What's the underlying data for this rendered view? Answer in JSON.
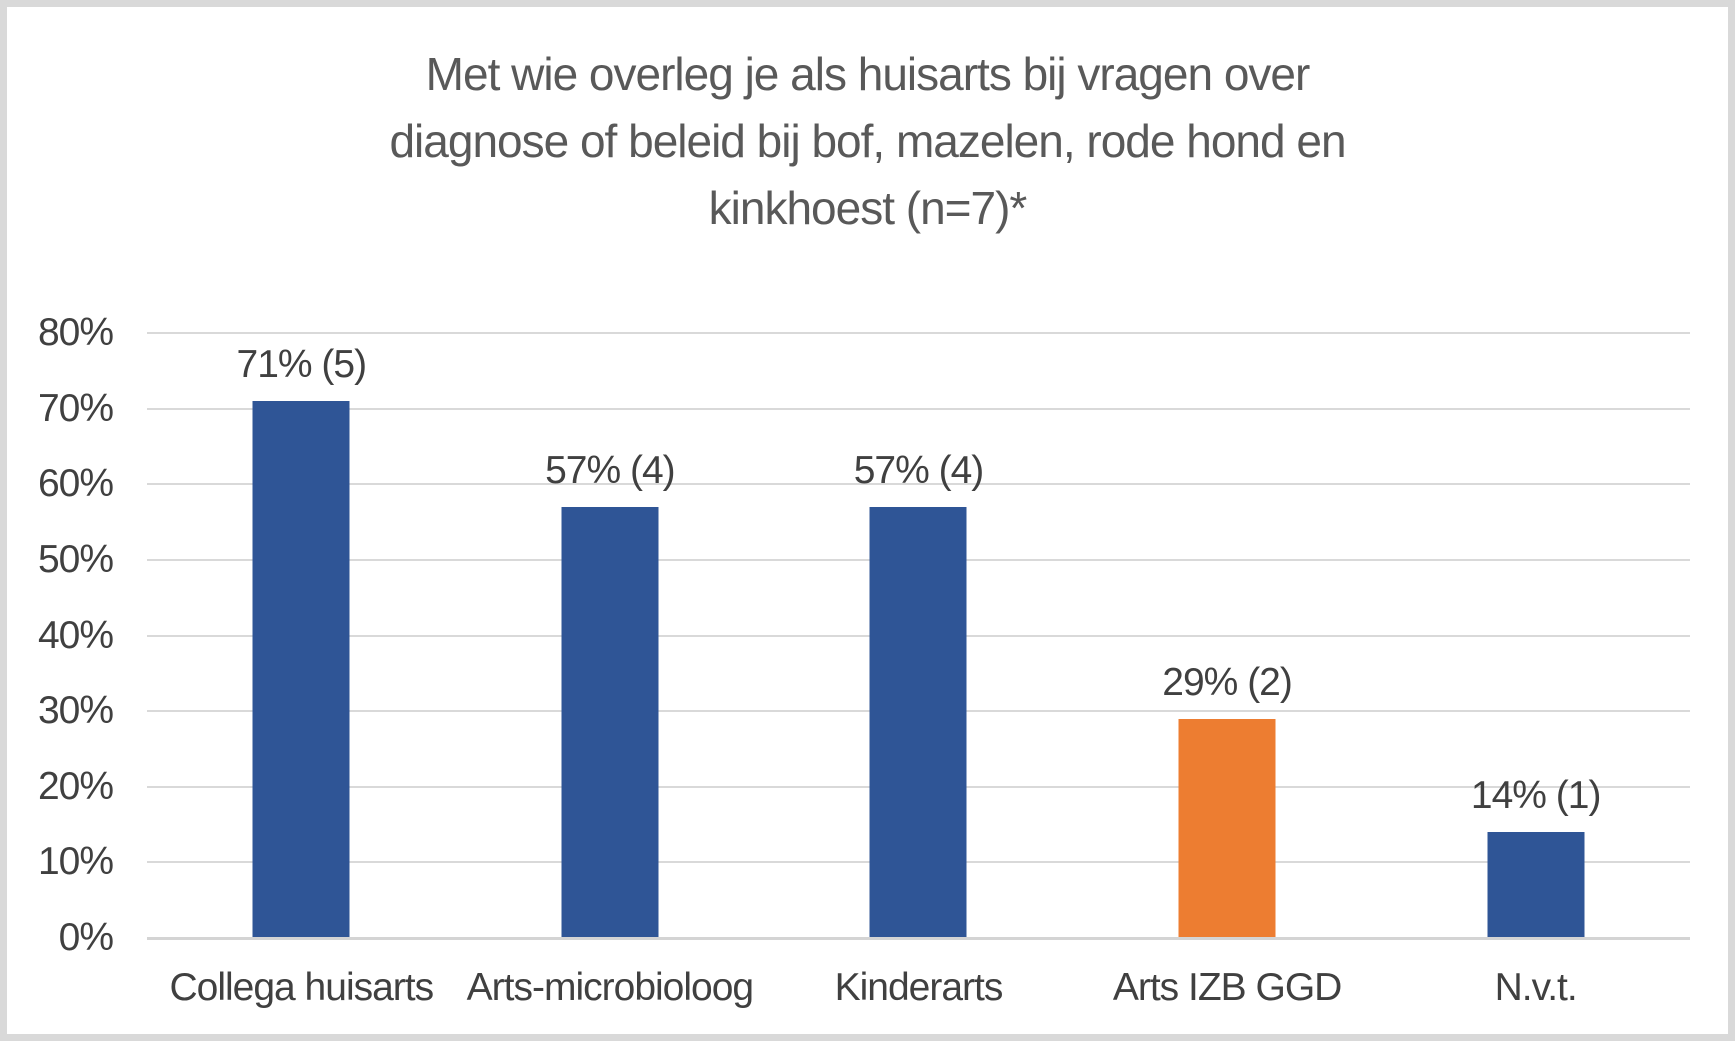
{
  "window": {
    "background": "#FFFFFF",
    "border_color": "#D9D9D9"
  },
  "chart_data": {
    "type": "bar",
    "title": "Met wie overleg je als huisarts bij vragen over diagnose of beleid bij bof, mazelen, rode hond en kinkhoest (n=7)*",
    "title_lines": [
      "Met wie overleg je als huisarts bij vragen over",
      "diagnose of beleid bij bof, mazelen, rode hond en",
      "kinkhoest (n=7)*"
    ],
    "xlabel": "",
    "ylabel": "",
    "categories": [
      "Collega huisarts",
      "Arts-microbioloog",
      "Kinderarts",
      "Arts IZB GGD",
      "N.v.t."
    ],
    "values": [
      71,
      57,
      57,
      29,
      14
    ],
    "counts": [
      5,
      4,
      4,
      2,
      1
    ],
    "data_labels": [
      "71% (5)",
      "57% (4)",
      "57% (4)",
      "29% (2)",
      "14% (1)"
    ],
    "bar_colors": [
      "#2F5596",
      "#2F5596",
      "#2F5596",
      "#ED7D31",
      "#2F5596"
    ],
    "y_axis": {
      "ticks": [
        "80%",
        "70%",
        "60%",
        "50%",
        "40%",
        "30%",
        "20%",
        "10%",
        "0%"
      ],
      "min": 0,
      "max": 80,
      "tick_step": 10
    },
    "grid": true,
    "legend_position": "none",
    "colors": {
      "title_text": "#595959",
      "axis_text": "#404040",
      "data_label_text": "#404040",
      "gridline": "#D9D9D9",
      "axis_line": "#D4D4D4",
      "bar_blue": "#2F5596",
      "bar_orange": "#ED7D31"
    }
  }
}
